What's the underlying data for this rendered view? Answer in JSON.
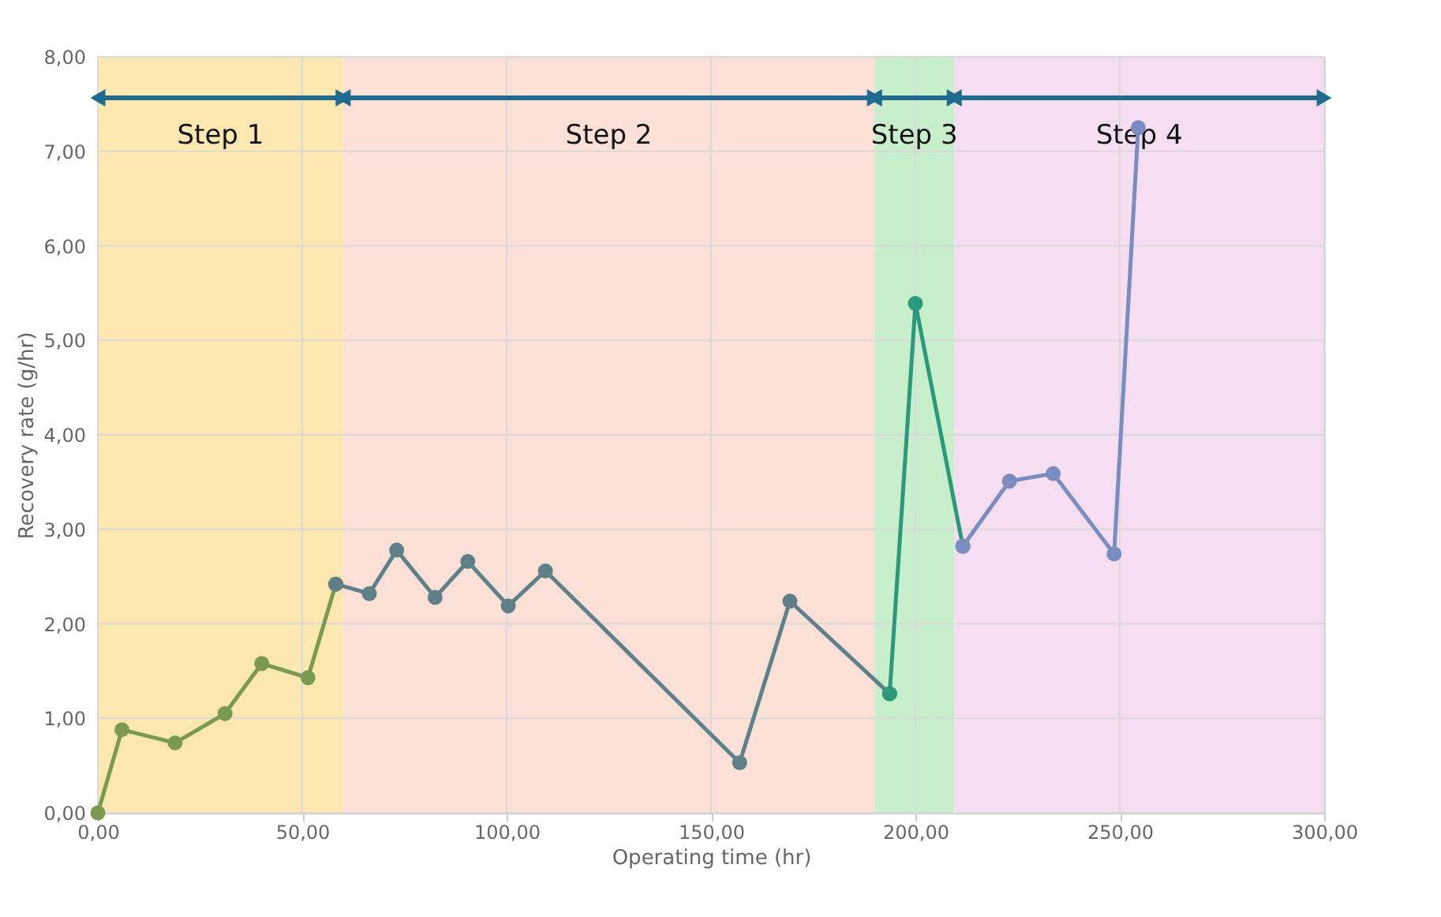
{
  "chart_data": {
    "type": "line",
    "xlabel": "Operating time (hr)",
    "ylabel": "Recovery rate (g/hr)",
    "xlim": [
      0,
      300
    ],
    "ylim": [
      0,
      8
    ],
    "xticks": [
      {
        "value": 0,
        "label": "0,00"
      },
      {
        "value": 50,
        "label": "50,00"
      },
      {
        "value": 100,
        "label": "100,00"
      },
      {
        "value": 150,
        "label": "150,00"
      },
      {
        "value": 200,
        "label": "200,00"
      },
      {
        "value": 250,
        "label": "250,00"
      },
      {
        "value": 300,
        "label": "300,00"
      }
    ],
    "yticks": [
      {
        "value": 0,
        "label": "0,00"
      },
      {
        "value": 1,
        "label": "1,00"
      },
      {
        "value": 2,
        "label": "2,00"
      },
      {
        "value": 3,
        "label": "3,00"
      },
      {
        "value": 4,
        "label": "4,00"
      },
      {
        "value": 5,
        "label": "5,00"
      },
      {
        "value": 6,
        "label": "6,00"
      },
      {
        "value": 7,
        "label": "7,00"
      },
      {
        "value": 8,
        "label": "8,00"
      }
    ],
    "grid": true,
    "marker": "circle",
    "line_style": "solid",
    "series": [
      {
        "color": "#7a9a50",
        "x": [
          0,
          5.9,
          18.9,
          31.1,
          40.1,
          51.4,
          58.2
        ],
        "values": [
          0,
          0.88,
          0.74,
          1.05,
          1.58,
          1.43,
          2.42
        ]
      },
      {
        "color": "#5f8088",
        "x": [
          58.2,
          66.4,
          73.1,
          82.5,
          90.5,
          100.4,
          109.5,
          157.0,
          169.3,
          193.7
        ],
        "values": [
          2.42,
          2.32,
          2.78,
          2.28,
          2.66,
          2.19,
          2.56,
          0.53,
          2.24,
          1.26
        ]
      },
      {
        "color": "#2a9a7a",
        "x": [
          193.7,
          200,
          211.6
        ],
        "values": [
          1.26,
          5.39,
          2.82
        ]
      },
      {
        "color": "#7b8cc0",
        "x": [
          211.6,
          223.0,
          233.7,
          248.6,
          254.5
        ],
        "values": [
          2.82,
          3.51,
          3.59,
          2.74,
          7.25
        ]
      }
    ],
    "bands": [
      {
        "axis": "x",
        "from": 0,
        "to": 60,
        "label": "Step 1",
        "color": "#fce7b0"
      },
      {
        "axis": "x",
        "from": 60,
        "to": 190,
        "label": "Step 2",
        "color": "#fae0d6"
      },
      {
        "axis": "x",
        "from": 190,
        "to": 209.5,
        "label": "Step 3",
        "color": "#c8efcc"
      },
      {
        "axis": "x",
        "from": 209.5,
        "to": 300,
        "label": "Step 4",
        "color": "#f5def2"
      }
    ]
  }
}
